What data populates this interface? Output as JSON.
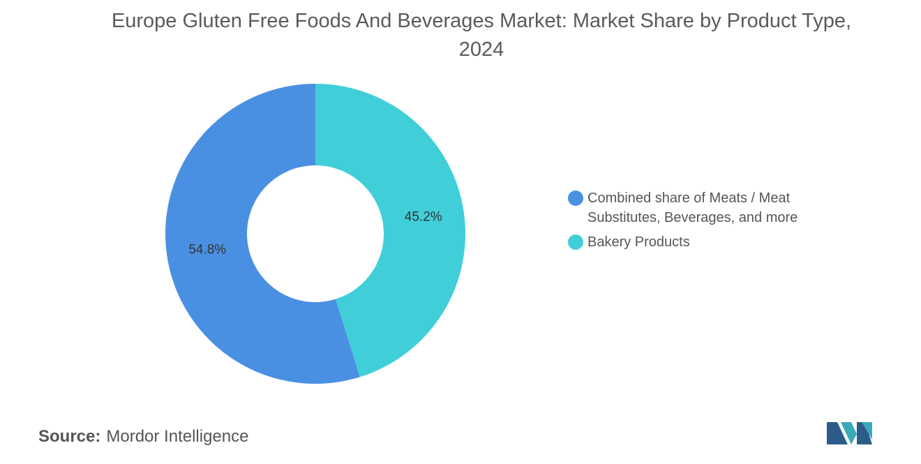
{
  "chart_data": {
    "type": "pie",
    "donut": true,
    "title": "Europe Gluten Free Foods And Beverages Market: Market Share by Product Type, 2024",
    "categories": [
      "Combined share of Meats / Meat Substitutes, Beverages, and more",
      "Bakery Products"
    ],
    "values": [
      54.8,
      45.2
    ],
    "value_labels": [
      "54.8%",
      "45.2%"
    ],
    "colors": [
      "#4a90e2",
      "#40cfd9"
    ],
    "legend": "right"
  },
  "source_label": "Source:",
  "source": "Mordor Intelligence"
}
